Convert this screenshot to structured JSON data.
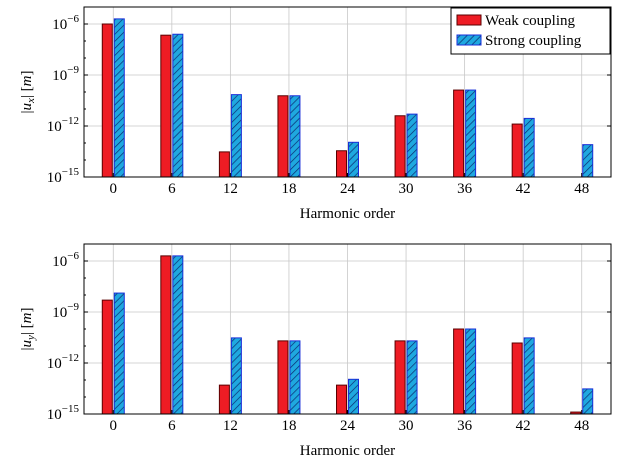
{
  "chart_data": [
    {
      "type": "bar",
      "y_scale": "log",
      "ylim_exponent": [
        -15,
        -5
      ],
      "yticks": [
        "10^{-15}",
        "10^{-12}",
        "10^{-9}",
        "10^{-6}"
      ],
      "ylabel": "|u_x| [m]",
      "xlabel": "Harmonic order",
      "categories": [
        "0",
        "6",
        "12",
        "18",
        "24",
        "30",
        "36",
        "42",
        "48"
      ],
      "grid": true,
      "legend_position": "top-right",
      "series": [
        {
          "name": "Weak coupling",
          "color": "#ee1c24",
          "hatch": false,
          "values": [
            1e-06,
            2.2e-07,
            3e-14,
            6e-11,
            3.5e-14,
            4e-12,
            1.3e-10,
            1.3e-12,
            null
          ]
        },
        {
          "name": "Strong coupling",
          "color": "#1fa8df",
          "hatch": true,
          "values": [
            2e-06,
            2.5e-07,
            7e-11,
            6e-11,
            1.1e-13,
            5e-12,
            1.3e-10,
            2.8e-12,
            8e-14
          ]
        }
      ]
    },
    {
      "type": "bar",
      "y_scale": "log",
      "ylim_exponent": [
        -15,
        -5
      ],
      "yticks": [
        "10^{-15}",
        "10^{-12}",
        "10^{-9}",
        "10^{-6}"
      ],
      "ylabel": "|u_y| [m]",
      "xlabel": "Harmonic order",
      "categories": [
        "0",
        "6",
        "12",
        "18",
        "24",
        "30",
        "36",
        "42",
        "48"
      ],
      "grid": true,
      "series": [
        {
          "name": "Weak coupling",
          "color": "#ee1c24",
          "hatch": false,
          "values": [
            5e-09,
            2e-06,
            5e-14,
            2e-11,
            5e-14,
            2e-11,
            1e-10,
            1.5e-11,
            1.3e-15
          ]
        },
        {
          "name": "Strong coupling",
          "color": "#1fa8df",
          "hatch": true,
          "values": [
            1.3e-08,
            2e-06,
            3e-11,
            2e-11,
            1.1e-13,
            2e-11,
            1e-10,
            3e-11,
            3e-14
          ]
        }
      ]
    }
  ]
}
